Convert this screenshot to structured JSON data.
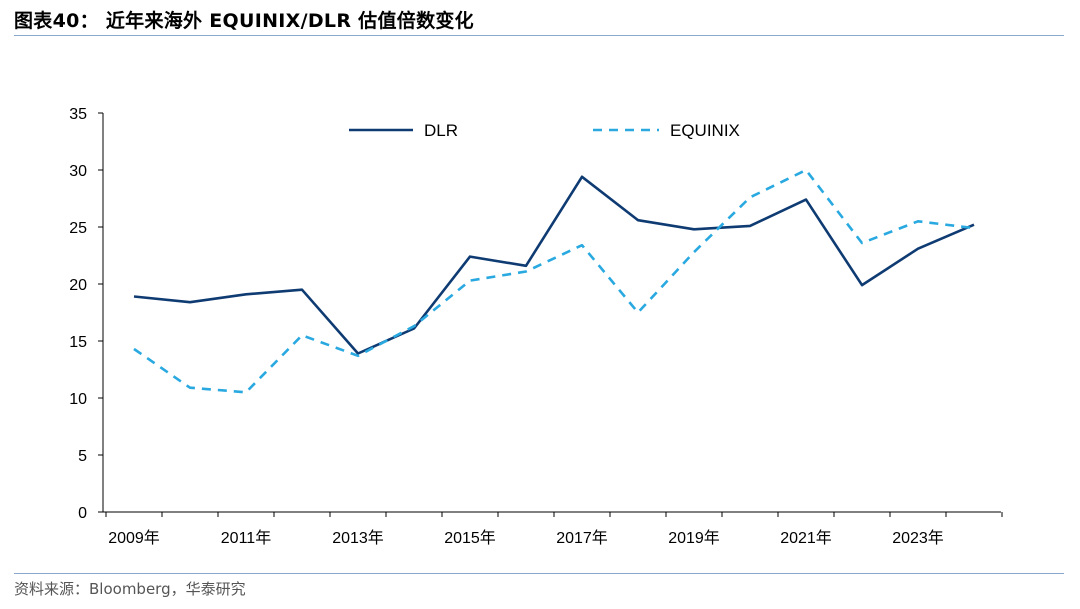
{
  "header": {
    "title": "图表40：  近年来海外 EQUINIX/DLR 估值倍数变化"
  },
  "footer": {
    "source": "资料来源：Bloomberg，华泰研究"
  },
  "chart_data": {
    "type": "line",
    "title": "",
    "xlabel": "",
    "ylabel": "",
    "x": [
      2009,
      2010,
      2011,
      2012,
      2013,
      2014,
      2015,
      2016,
      2017,
      2018,
      2019,
      2020,
      2021,
      2022,
      2023,
      2024
    ],
    "x_tick_labels": [
      "2009年",
      "2011年",
      "2013年",
      "2015年",
      "2017年",
      "2019年",
      "2021年",
      "2023年"
    ],
    "y_ticks": [
      "0",
      "5",
      "10",
      "15",
      "20",
      "25",
      "30",
      "35"
    ],
    "ylim": [
      0,
      35
    ],
    "grid": false,
    "legend_position": "top",
    "series": [
      {
        "name": "DLR",
        "style": "solid",
        "color": "#0f3b73",
        "values": [
          18.9,
          18.4,
          19.1,
          19.5,
          13.9,
          16.1,
          22.4,
          21.6,
          29.4,
          25.6,
          24.8,
          25.1,
          27.4,
          19.9,
          23.1,
          25.2
        ]
      },
      {
        "name": "EQUINIX",
        "style": "dashed",
        "color": "#29a9e0",
        "values": [
          14.3,
          10.9,
          10.5,
          15.5,
          13.7,
          16.3,
          20.3,
          21.1,
          23.4,
          17.5,
          22.8,
          27.6,
          30.0,
          23.6,
          25.5,
          24.9
        ]
      }
    ]
  }
}
